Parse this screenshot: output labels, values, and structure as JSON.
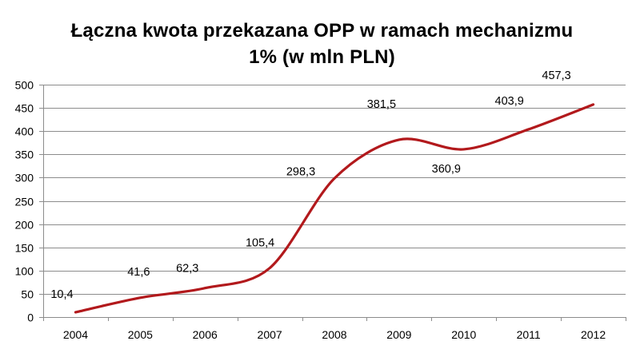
{
  "chart_data": {
    "type": "line",
    "title_line1": "Łączna kwota przekazana OPP w ramach mechanizmu",
    "title_line2": "1% (w mln PLN)",
    "xlabel": "",
    "ylabel": "",
    "categories": [
      "2004",
      "2005",
      "2006",
      "2007",
      "2008",
      "2009",
      "2010",
      "2011",
      "2012"
    ],
    "series": [
      {
        "values": [
          10.4,
          41.6,
          62.3,
          105.4,
          298.3,
          381.5,
          360.9,
          403.9,
          457.3
        ],
        "labels": [
          "10,4",
          "41,6",
          "62,3",
          "105,4",
          "298,3",
          "381,5",
          "360,9",
          "403,9",
          "457,3"
        ],
        "color": "#b2191c"
      }
    ],
    "ylim": [
      0,
      500
    ],
    "yticks": [
      0,
      50,
      100,
      150,
      200,
      250,
      300,
      350,
      400,
      450,
      500
    ],
    "grid": true,
    "legend": "none",
    "smooth": true
  }
}
